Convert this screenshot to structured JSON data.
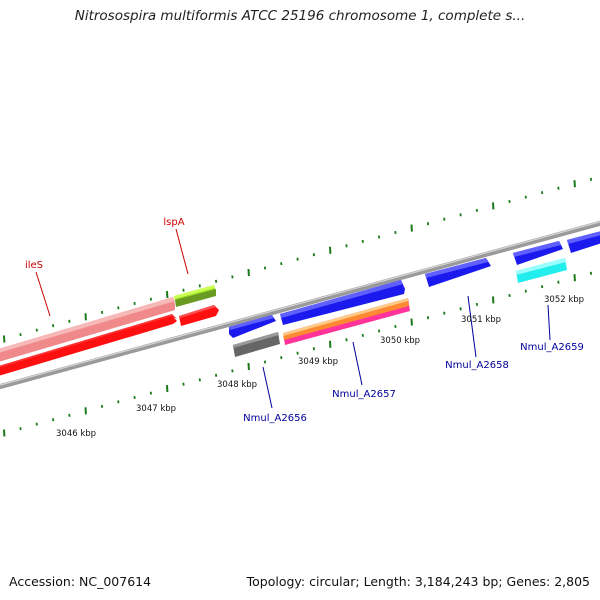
{
  "title": "Nitrosospira multiformis ATCC 25196 chromosome 1, complete s...",
  "footer": {
    "accession": "Accession: NC_007614",
    "topology": "Topology: circular; Length: 3,184,243 bp; Genes: 2,805"
  },
  "colors": {
    "backbone": "#8a8a8a",
    "ticks": "#1a7a1a",
    "label_red": "#cc0000",
    "label_blue": "#00009b"
  },
  "kbp_labels": [
    {
      "text": "3046 kbp"
    },
    {
      "text": "3047 kbp"
    },
    {
      "text": "3048 kbp"
    },
    {
      "text": "3049 kbp"
    },
    {
      "text": "3050 kbp"
    },
    {
      "text": "3051 kbp"
    },
    {
      "text": "3052 kbp"
    }
  ],
  "gene_labels": [
    {
      "text": "ileS",
      "color": "red"
    },
    {
      "text": "lspA",
      "color": "red"
    },
    {
      "text": "Nmul_A2656",
      "color": "blue"
    },
    {
      "text": "Nmul_A2657",
      "color": "blue"
    },
    {
      "text": "Nmul_A2658",
      "color": "blue"
    },
    {
      "text": "Nmul_A2659",
      "color": "blue"
    }
  ],
  "features": [
    {
      "name": "ileS-cds",
      "color": "#ff1010"
    },
    {
      "name": "ileS-gene",
      "color": "#f08a8a"
    },
    {
      "name": "lspA-cds",
      "color": "#ff1010"
    },
    {
      "name": "lspA-gene",
      "color": "#99dd22"
    },
    {
      "name": "Nmul_A2656-cds",
      "color": "#1a1aee"
    },
    {
      "name": "Nmul_A2656-gene",
      "color": "#666666"
    },
    {
      "name": "Nmul_A2657-cds",
      "color": "#1a1aee"
    },
    {
      "name": "Nmul_A2657-gene",
      "color": "#ff8833"
    },
    {
      "name": "Nmul_A2658-cds",
      "color": "#1a1aee"
    },
    {
      "name": "Nmul_A2659-cds",
      "color": "#1a1aee"
    },
    {
      "name": "Nmul_A2659-gene",
      "color": "#22eeee"
    },
    {
      "name": "next-gene",
      "color": "#1a1aee"
    }
  ]
}
